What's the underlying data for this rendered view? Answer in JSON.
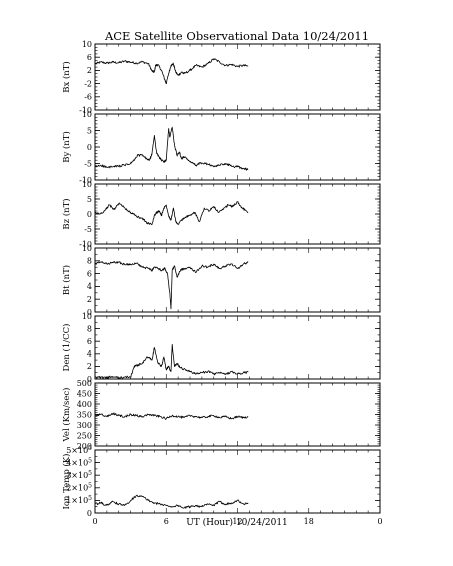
{
  "chart_data": {
    "type": "line",
    "title": "ACE Satellite Observational Data   10/24/2011",
    "xlabel": "UT (Hour)  10/24/2011",
    "x_ticks": [
      "0",
      "6",
      "12",
      "18",
      "0"
    ],
    "xlim": [
      0,
      24
    ],
    "data_end_hour": 12.9,
    "line_color": "#000000",
    "panels": [
      {
        "ylabel": "Bx (nT)",
        "ylim": [
          -10,
          10
        ],
        "yticks": [
          "10",
          "6",
          "2",
          "-2",
          "-6",
          "-10"
        ],
        "ytick_values": [
          10,
          6,
          2,
          -2,
          -6,
          -10
        ],
        "minor_step": 1,
        "series": {
          "x": [
            0.0,
            0.5,
            1.0,
            1.5,
            2.0,
            2.5,
            3.0,
            3.5,
            4.0,
            4.5,
            4.8,
            5.0,
            5.1,
            5.3,
            5.6,
            5.9,
            6.0,
            6.2,
            6.4,
            6.6,
            6.8,
            7.0,
            7.3,
            7.5,
            8.0,
            8.5,
            9.0,
            9.5,
            10.0,
            10.5,
            11.0,
            11.5,
            12.0,
            12.5,
            12.9
          ],
          "y": [
            4.0,
            4.5,
            4.2,
            4.5,
            4.3,
            4.8,
            4.5,
            4.2,
            4.6,
            4.0,
            1.8,
            1.5,
            3.5,
            3.7,
            2.0,
            -1.0,
            -2.0,
            1.0,
            3.5,
            4.0,
            1.5,
            0.5,
            1.5,
            1.0,
            2.0,
            3.5,
            3.0,
            4.0,
            5.5,
            4.5,
            3.5,
            3.8,
            3.2,
            3.5,
            3.3
          ]
        }
      },
      {
        "ylabel": "By (nT)",
        "ylim": [
          -10,
          10
        ],
        "yticks": [
          "10",
          "5",
          "0",
          "-5",
          "-10"
        ],
        "ytick_values": [
          10,
          5,
          0,
          -5,
          -10
        ],
        "minor_step": 1,
        "series": {
          "x": [
            0.0,
            0.5,
            1.0,
            1.5,
            2.0,
            2.5,
            3.0,
            3.3,
            3.6,
            4.0,
            4.3,
            4.6,
            4.8,
            5.0,
            5.2,
            5.4,
            5.6,
            5.8,
            6.0,
            6.2,
            6.3,
            6.5,
            6.7,
            6.9,
            7.1,
            7.3,
            7.5,
            8.0,
            8.5,
            9.0,
            9.5,
            10.0,
            10.5,
            11.0,
            11.5,
            12.0,
            12.5,
            12.9
          ],
          "y": [
            -6.0,
            -5.5,
            -6.2,
            -6.0,
            -5.8,
            -5.5,
            -5.0,
            -4.0,
            -2.5,
            -2.5,
            -3.5,
            -4.0,
            -2.0,
            3.5,
            -2.0,
            -3.0,
            -4.0,
            -4.5,
            -4.0,
            5.5,
            3.0,
            6.0,
            0.5,
            -2.5,
            -1.5,
            -3.5,
            -3.0,
            -4.5,
            -5.5,
            -4.8,
            -5.2,
            -6.0,
            -5.5,
            -5.0,
            -5.8,
            -6.0,
            -6.5,
            -6.8
          ]
        }
      },
      {
        "ylabel": "Bz (nT)",
        "ylim": [
          -10,
          10
        ],
        "yticks": [
          "10",
          "5",
          "0",
          "-5",
          "-10"
        ],
        "ytick_values": [
          10,
          5,
          0,
          -5,
          -10
        ],
        "minor_step": 1,
        "series": {
          "x": [
            0.0,
            0.4,
            0.8,
            1.2,
            1.6,
            2.0,
            2.4,
            2.8,
            3.2,
            3.6,
            4.0,
            4.4,
            4.8,
            5.0,
            5.2,
            5.4,
            5.6,
            5.8,
            6.0,
            6.2,
            6.4,
            6.6,
            6.8,
            7.0,
            7.3,
            7.6,
            8.0,
            8.4,
            8.8,
            9.2,
            9.6,
            10.0,
            10.4,
            10.8,
            11.2,
            11.6,
            12.0,
            12.4,
            12.9
          ],
          "y": [
            0.5,
            0.0,
            1.0,
            3.0,
            1.5,
            3.5,
            2.5,
            1.0,
            0.0,
            -1.0,
            -1.5,
            -3.0,
            -3.5,
            -0.5,
            0.5,
            1.0,
            -0.5,
            2.0,
            3.0,
            -0.5,
            -2.0,
            2.0,
            -2.5,
            -3.5,
            -2.0,
            -1.0,
            -0.5,
            0.5,
            -2.5,
            2.0,
            1.0,
            2.5,
            0.5,
            1.5,
            3.0,
            2.5,
            4.0,
            2.0,
            0.5
          ]
        }
      },
      {
        "ylabel": "Bt (nT)",
        "ylim": [
          0,
          10
        ],
        "yticks": [
          "10",
          "8",
          "6",
          "4",
          "2",
          "0"
        ],
        "ytick_values": [
          10,
          8,
          6,
          4,
          2,
          0
        ],
        "minor_step": 1,
        "series": {
          "x": [
            0.0,
            0.5,
            1.0,
            1.5,
            2.0,
            2.5,
            3.0,
            3.5,
            4.0,
            4.5,
            4.8,
            5.0,
            5.3,
            5.6,
            5.9,
            6.1,
            6.3,
            6.4,
            6.5,
            6.7,
            6.9,
            7.2,
            7.5,
            8.0,
            8.5,
            9.0,
            9.5,
            10.0,
            10.5,
            11.0,
            11.5,
            12.0,
            12.5,
            12.9
          ],
          "y": [
            7.5,
            7.8,
            7.5,
            7.7,
            7.8,
            7.4,
            7.5,
            7.6,
            7.0,
            6.8,
            6.5,
            7.0,
            6.8,
            6.5,
            6.8,
            6.0,
            3.0,
            0.5,
            6.5,
            7.2,
            5.5,
            6.5,
            6.8,
            7.0,
            6.2,
            7.2,
            7.0,
            7.5,
            6.8,
            7.2,
            7.5,
            6.8,
            7.5,
            7.8
          ]
        }
      },
      {
        "ylabel": "Den (1/CC)",
        "ylim": [
          0,
          10
        ],
        "yticks": [
          "10",
          "8",
          "6",
          "4",
          "2",
          "0"
        ],
        "ytick_values": [
          10,
          8,
          6,
          4,
          2,
          0
        ],
        "minor_step": 1,
        "series": {
          "x": [
            0.0,
            0.5,
            1.0,
            1.5,
            2.0,
            2.5,
            3.0,
            3.3,
            3.6,
            4.0,
            4.4,
            4.8,
            5.0,
            5.3,
            5.6,
            5.8,
            6.0,
            6.2,
            6.4,
            6.5,
            6.7,
            6.9,
            7.2,
            7.6,
            8.0,
            8.5,
            9.0,
            9.5,
            10.0,
            10.5,
            11.0,
            11.5,
            12.0,
            12.5,
            12.9
          ],
          "y": [
            0.2,
            0.3,
            0.2,
            0.4,
            0.2,
            0.3,
            0.3,
            2.0,
            2.2,
            2.5,
            3.5,
            3.0,
            5.0,
            2.5,
            2.0,
            3.5,
            1.5,
            2.0,
            1.2,
            5.5,
            2.0,
            2.5,
            1.8,
            1.5,
            1.2,
            0.8,
            1.0,
            1.2,
            0.8,
            1.0,
            0.7,
            1.2,
            0.8,
            1.0,
            1.1
          ]
        }
      },
      {
        "ylabel": "Vel (Km/sec)",
        "ylim": [
          200,
          500
        ],
        "yticks": [
          "500",
          "450",
          "400",
          "350",
          "300",
          "250",
          "200"
        ],
        "ytick_values": [
          500,
          450,
          400,
          350,
          300,
          250,
          200
        ],
        "minor_step": 10,
        "series": {
          "x": [
            0.0,
            0.5,
            1.0,
            1.5,
            2.0,
            2.5,
            3.0,
            3.5,
            4.0,
            4.5,
            5.0,
            5.5,
            6.0,
            6.5,
            7.0,
            7.5,
            8.0,
            8.5,
            9.0,
            9.5,
            10.0,
            10.5,
            11.0,
            11.5,
            12.0,
            12.5,
            12.9
          ],
          "y": [
            345,
            350,
            340,
            355,
            345,
            340,
            350,
            345,
            340,
            350,
            345,
            340,
            330,
            345,
            340,
            335,
            345,
            340,
            335,
            340,
            345,
            335,
            340,
            330,
            340,
            335,
            340
          ]
        }
      },
      {
        "ylabel": "Ion Temp (K)",
        "ylim": [
          0,
          5
        ],
        "ytick_values": [
          5,
          4,
          3,
          2,
          1,
          0
        ],
        "ytick_mantissa": [
          "5",
          "4",
          "3",
          "2",
          "1",
          "0"
        ],
        "ytick_suffix": "×10",
        "ytick_exponent": "5",
        "minor_step": 0.5,
        "series": {
          "x": [
            0.0,
            0.5,
            1.0,
            1.5,
            2.0,
            2.5,
            3.0,
            3.5,
            4.0,
            4.5,
            5.0,
            5.5,
            6.0,
            6.5,
            7.0,
            7.5,
            8.0,
            8.5,
            9.0,
            9.5,
            10.0,
            10.5,
            11.0,
            11.5,
            12.0,
            12.5,
            12.9
          ],
          "y": [
            0.7,
            0.8,
            0.6,
            0.9,
            0.7,
            0.6,
            1.0,
            1.4,
            1.3,
            1.0,
            0.8,
            0.7,
            0.6,
            0.5,
            0.6,
            0.4,
            0.5,
            0.6,
            0.5,
            0.7,
            0.6,
            0.9,
            0.7,
            0.8,
            1.0,
            0.7,
            0.8
          ]
        }
      }
    ]
  }
}
